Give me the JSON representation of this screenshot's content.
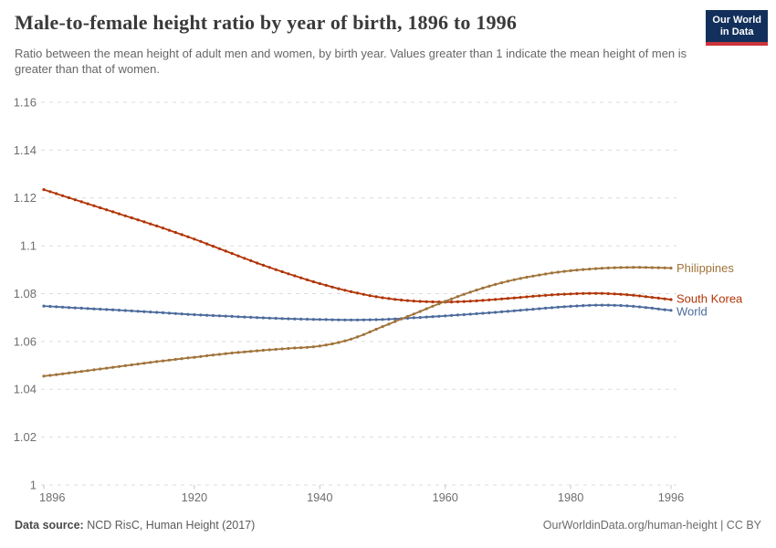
{
  "header": {
    "title": "Male-to-female height ratio by year of birth, 1896 to 1996",
    "subtitle": "Ratio between the mean height of adult men and women, by birth year. Values greater than 1 indicate the mean height of men is greater than that of women.",
    "logo": {
      "line1": "Our World",
      "line2": "in Data",
      "bg_color": "#12305b",
      "stripe_color": "#cb343b"
    }
  },
  "footer": {
    "source_label": "Data source:",
    "source_text": " NCD RisC, Human Height (2017)",
    "link_text": "OurWorldinData.org/human-height | CC BY"
  },
  "chart_data": {
    "type": "line",
    "title": "Male-to-female height ratio by year of birth, 1896 to 1996",
    "xlabel": "",
    "ylabel": "",
    "xlim": [
      1896,
      1996
    ],
    "ylim": [
      1.0,
      1.16
    ],
    "x_ticks": [
      1896,
      1920,
      1940,
      1960,
      1980,
      1996
    ],
    "y_ticks": [
      1,
      1.02,
      1.04,
      1.06,
      1.08,
      1.1,
      1.12,
      1.14,
      1.16
    ],
    "grid": "horizontal-dashed",
    "legend_position": "end-of-line-labels",
    "markers": "dot-per-year",
    "colors": {
      "grid": "#dcdcdc",
      "axis_text": "#6e6e6e",
      "tick": "#c4c4c4"
    },
    "series": [
      {
        "name": "Philippines",
        "color": "#a0733a",
        "points": [
          [
            1896,
            1.0455
          ],
          [
            1900,
            1.0468
          ],
          [
            1905,
            1.0485
          ],
          [
            1910,
            1.0502
          ],
          [
            1915,
            1.0519
          ],
          [
            1920,
            1.0534
          ],
          [
            1925,
            1.0549
          ],
          [
            1930,
            1.0561
          ],
          [
            1935,
            1.0571
          ],
          [
            1940,
            1.0581
          ],
          [
            1945,
            1.061
          ],
          [
            1950,
            1.0662
          ],
          [
            1955,
            1.0715
          ],
          [
            1960,
            1.0768
          ],
          [
            1965,
            1.0815
          ],
          [
            1970,
            1.0852
          ],
          [
            1975,
            1.0878
          ],
          [
            1980,
            1.0896
          ],
          [
            1985,
            1.0906
          ],
          [
            1990,
            1.091
          ],
          [
            1996,
            1.0907
          ]
        ]
      },
      {
        "name": "South Korea",
        "color": "#b13507",
        "points": [
          [
            1896,
            1.1235
          ],
          [
            1900,
            1.1201
          ],
          [
            1905,
            1.1159
          ],
          [
            1910,
            1.1117
          ],
          [
            1915,
            1.1074
          ],
          [
            1920,
            1.1028
          ],
          [
            1925,
            1.0978
          ],
          [
            1930,
            1.0928
          ],
          [
            1935,
            1.0883
          ],
          [
            1940,
            1.0842
          ],
          [
            1945,
            1.0808
          ],
          [
            1950,
            1.0783
          ],
          [
            1955,
            1.0769
          ],
          [
            1960,
            1.0765
          ],
          [
            1965,
            1.077
          ],
          [
            1970,
            1.078
          ],
          [
            1975,
            1.0791
          ],
          [
            1980,
            1.0799
          ],
          [
            1985,
            1.0801
          ],
          [
            1990,
            1.0793
          ],
          [
            1996,
            1.0775
          ]
        ]
      },
      {
        "name": "World",
        "color": "#4c6a9c",
        "points": [
          [
            1896,
            1.0748
          ],
          [
            1900,
            1.0742
          ],
          [
            1905,
            1.0735
          ],
          [
            1910,
            1.0728
          ],
          [
            1915,
            1.072
          ],
          [
            1920,
            1.0712
          ],
          [
            1925,
            1.0706
          ],
          [
            1930,
            1.07
          ],
          [
            1935,
            1.0695
          ],
          [
            1940,
            1.0692
          ],
          [
            1945,
            1.069
          ],
          [
            1950,
            1.0692
          ],
          [
            1955,
            1.0699
          ],
          [
            1960,
            1.0707
          ],
          [
            1965,
            1.0716
          ],
          [
            1970,
            1.0726
          ],
          [
            1975,
            1.0737
          ],
          [
            1980,
            1.0747
          ],
          [
            1985,
            1.0752
          ],
          [
            1990,
            1.0747
          ],
          [
            1996,
            1.073
          ]
        ]
      }
    ]
  }
}
